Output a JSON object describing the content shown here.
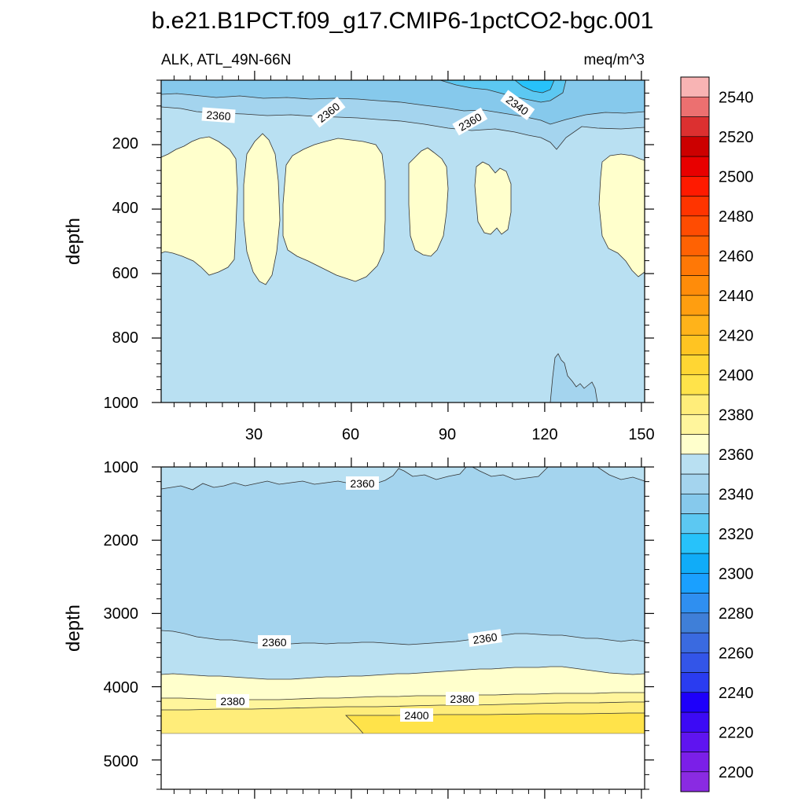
{
  "chart_data": {
    "type": "contour",
    "title": "b.e21.B1PCT.f09_g17.CMIP6-1pctCO2-bgc.001",
    "left_subtitle": "ALK, ATL_49N-66N",
    "right_subtitle": "meq/m^3",
    "ylabel": "depth",
    "xlim": [
      1,
      151
    ],
    "x_ticks": [
      "30",
      "60",
      "90",
      "120",
      "150"
    ],
    "panels": [
      {
        "name": "upper",
        "ylim": [
          0,
          1000
        ],
        "y_ticks": [
          "200",
          "400",
          "600",
          "800",
          "1000"
        ],
        "contour_labels": [
          "2360",
          "2360",
          "2360",
          "2340"
        ]
      },
      {
        "name": "lower",
        "ylim": [
          1000,
          5400
        ],
        "y_ticks": [
          "1000",
          "2000",
          "3000",
          "4000",
          "5000"
        ],
        "contour_labels": [
          "2360",
          "2360",
          "2360",
          "2380",
          "2380",
          "2400"
        ]
      }
    ],
    "colorbar": {
      "levels": [
        2200,
        2210,
        2220,
        2230,
        2240,
        2250,
        2260,
        2270,
        2280,
        2290,
        2300,
        2310,
        2320,
        2330,
        2340,
        2350,
        2360,
        2370,
        2380,
        2390,
        2400,
        2410,
        2420,
        2430,
        2440,
        2450,
        2460,
        2470,
        2480,
        2490,
        2500,
        2510,
        2520,
        2530,
        2540,
        2550
      ],
      "colors": [
        "#8a2be2",
        "#7b1fe8",
        "#5f14f0",
        "#3c0af5",
        "#1e00fa",
        "#2a3cf0",
        "#3355e8",
        "#3a6ae0",
        "#3f7fd8",
        "#2f8ff0",
        "#1aa0ff",
        "#10acf8",
        "#27c2fa",
        "#5cc8f2",
        "#86c9ec",
        "#a4d4ee",
        "#b9e0f2",
        "#ffffcc",
        "#fff59c",
        "#ffed7a",
        "#ffe34a",
        "#ffd633",
        "#ffc422",
        "#ffb31a",
        "#ff9e10",
        "#ff8c0a",
        "#ff7806",
        "#ff6203",
        "#ff4c02",
        "#ff3400",
        "#ff1a00",
        "#e80000",
        "#cc0000",
        "#dc3030",
        "#ec7070",
        "#f8b4b4"
      ],
      "labels": [
        "2200",
        "2220",
        "2240",
        "2260",
        "2280",
        "2300",
        "2320",
        "2340",
        "2360",
        "2380",
        "2400",
        "2420",
        "2440",
        "2460",
        "2480",
        "2500",
        "2520",
        "2540"
      ]
    }
  }
}
